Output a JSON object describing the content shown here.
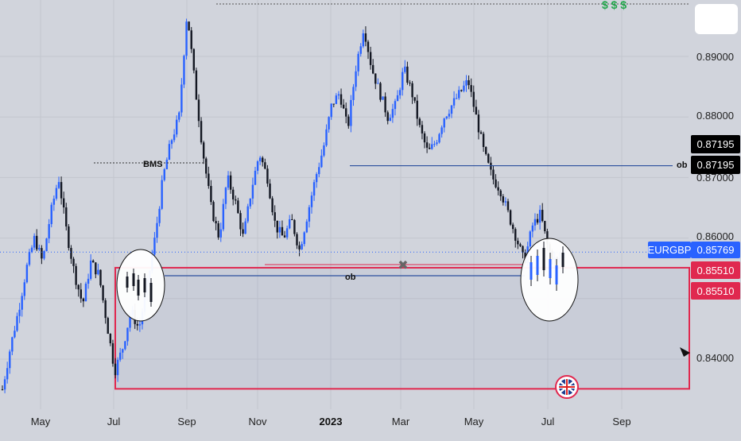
{
  "chart_data": {
    "type": "candlestick",
    "symbol": "EURGBP",
    "last_price": "0.85769",
    "y_range": [
      0.832,
      0.9
    ],
    "y_ticks": [
      "0.89000",
      "0.88000",
      "0.87000",
      "0.86000",
      "0.84000"
    ],
    "x_ticks": [
      "May",
      "Jul",
      "Sep",
      "Nov",
      "2023",
      "Mar",
      "May",
      "Jul",
      "Sep"
    ],
    "x_tick_bold": "2023",
    "gridlines": true,
    "colors": {
      "up": "#2962ff",
      "down": "#131722",
      "zone": "#e0284f",
      "bg": "#d1d4dc",
      "green": "#22a64b"
    },
    "price_badges": {
      "ob_upper": "0.87195",
      "ob_upper_2": "0.87195",
      "symbol_label": "EURGBP",
      "current": "0.85769",
      "zone_top": "0.85510",
      "zone_top_2": "0.85510"
    },
    "annotations": {
      "bms": "BMS",
      "ob_lower": "ob",
      "ob_upper": "ob",
      "liquidity": "$ $ $",
      "invalidation": "✖"
    },
    "levels": {
      "bms": 0.8725,
      "ob_upper": 0.87195,
      "ob_lower": 0.8562,
      "current": 0.85769,
      "invalidation": 0.8572,
      "zone_top": 0.8551,
      "zone_bottom": 0.8351,
      "high": 0.8975
    },
    "price_path": [
      0.835,
      0.842,
      0.848,
      0.855,
      0.86,
      0.856,
      0.864,
      0.87,
      0.861,
      0.854,
      0.849,
      0.856,
      0.854,
      0.846,
      0.838,
      0.842,
      0.848,
      0.845,
      0.852,
      0.86,
      0.87,
      0.876,
      0.88,
      0.8975,
      0.885,
      0.874,
      0.865,
      0.86,
      0.87,
      0.866,
      0.86,
      0.868,
      0.874,
      0.87,
      0.862,
      0.86,
      0.863,
      0.858,
      0.864,
      0.87,
      0.875,
      0.882,
      0.884,
      0.878,
      0.888,
      0.895,
      0.888,
      0.884,
      0.88,
      0.882,
      0.888,
      0.884,
      0.878,
      0.874,
      0.876,
      0.88,
      0.882,
      0.884,
      0.886,
      0.88,
      0.874,
      0.87,
      0.868,
      0.864,
      0.86,
      0.856,
      0.862,
      0.864,
      0.858,
      0.856,
      0.8577
    ]
  }
}
